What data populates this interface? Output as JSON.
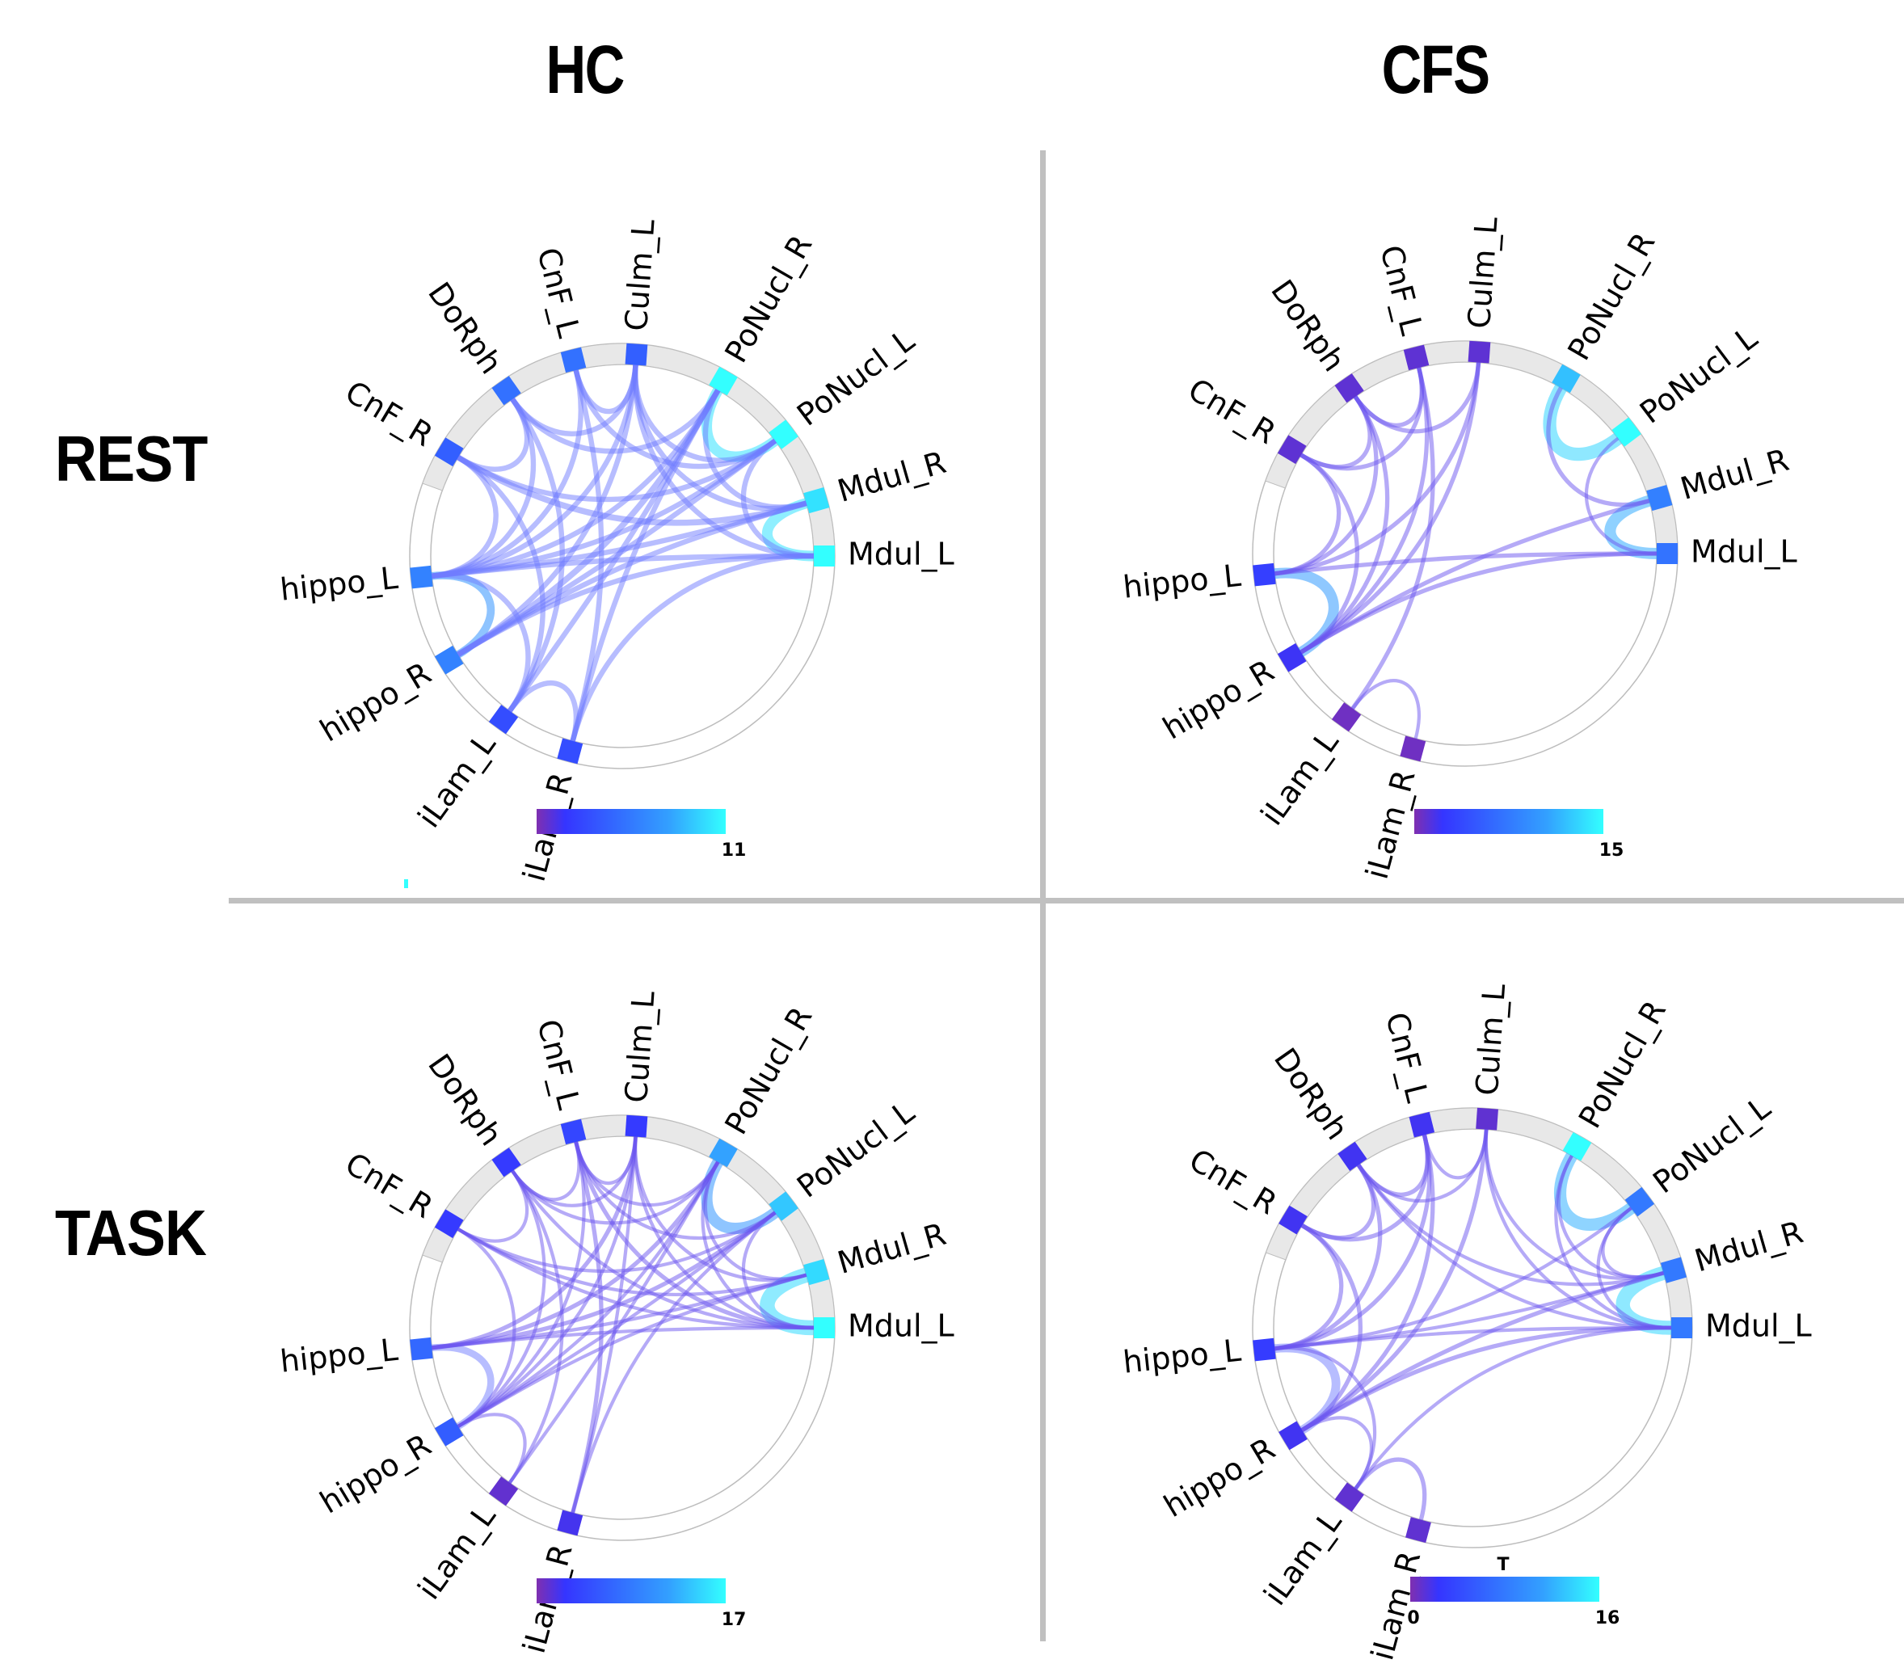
{
  "figure": {
    "column_titles": [
      "HC",
      "CFS"
    ],
    "row_titles": [
      "REST",
      "TASK"
    ]
  },
  "colormap": {
    "stops": [
      "#7f2fb0",
      "#3535ff",
      "#3366ff",
      "#33a0ff",
      "#33ffff"
    ],
    "ring_color": "#e8e8e8",
    "divider_color": "#c0c0c0"
  },
  "chart_data": [
    {
      "type": "chord",
      "title": "HC / REST",
      "group": "HC",
      "condition": "REST",
      "nodes": [
        "Mdul_L",
        "Mdul_R",
        "PoNucl_L",
        "PoNucl_R",
        "Culm_L",
        "CnF_L",
        "DoRph",
        "CnF_R",
        "hippo_L",
        "hippo_R",
        "iLam_L",
        "iLam_R"
      ],
      "node_values": [
        11,
        10,
        11,
        11,
        4,
        5,
        5,
        4,
        6,
        6,
        3,
        3
      ],
      "colorbar": {
        "min": 0,
        "max": 11,
        "max_label": "11",
        "min_label": "",
        "title": ""
      },
      "edges": [
        [
          "Mdul_L",
          "Mdul_R",
          10
        ],
        [
          "PoNucl_L",
          "PoNucl_R",
          10
        ],
        [
          "hippo_L",
          "hippo_R",
          7
        ],
        [
          "Culm_L",
          "CnF_L",
          4
        ],
        [
          "Culm_L",
          "DoRph",
          4
        ],
        [
          "Culm_L",
          "hippo_L",
          4
        ],
        [
          "Culm_L",
          "hippo_R",
          4
        ],
        [
          "Culm_L",
          "Mdul_L",
          4
        ],
        [
          "Culm_L",
          "Mdul_R",
          4
        ],
        [
          "Culm_L",
          "PoNucl_L",
          4
        ],
        [
          "CnF_L",
          "iLam_R",
          4
        ],
        [
          "CnF_L",
          "PoNucl_L",
          4
        ],
        [
          "CnF_L",
          "hippo_L",
          4
        ],
        [
          "DoRph",
          "CnF_R",
          4
        ],
        [
          "DoRph",
          "hippo_L",
          4
        ],
        [
          "DoRph",
          "iLam_L",
          4
        ],
        [
          "DoRph",
          "PoNucl_R",
          4
        ],
        [
          "CnF_R",
          "Mdul_R",
          5
        ],
        [
          "CnF_R",
          "hippo_L",
          4
        ],
        [
          "CnF_R",
          "iLam_L",
          4
        ],
        [
          "CnF_R",
          "PoNucl_L",
          4
        ],
        [
          "hippo_L",
          "Mdul_L",
          4
        ],
        [
          "hippo_L",
          "Mdul_R",
          4
        ],
        [
          "hippo_L",
          "PoNucl_R",
          4
        ],
        [
          "hippo_L",
          "PoNucl_L",
          4
        ],
        [
          "hippo_L",
          "iLam_L",
          4
        ],
        [
          "hippo_R",
          "PoNucl_R",
          5
        ],
        [
          "hippo_R",
          "PoNucl_L",
          4
        ],
        [
          "hippo_R",
          "Mdul_L",
          4
        ],
        [
          "hippo_R",
          "Mdul_R",
          4
        ],
        [
          "iLam_L",
          "iLam_R",
          4
        ],
        [
          "iLam_L",
          "PoNucl_R",
          4
        ],
        [
          "iLam_R",
          "Mdul_L",
          4
        ],
        [
          "iLam_R",
          "PoNucl_R",
          4
        ],
        [
          "PoNucl_R",
          "Mdul_R",
          4
        ],
        [
          "PoNucl_L",
          "Mdul_L",
          4
        ]
      ]
    },
    {
      "type": "chord",
      "title": "CFS / REST",
      "group": "CFS",
      "condition": "REST",
      "nodes": [
        "Mdul_L",
        "Mdul_R",
        "PoNucl_L",
        "PoNucl_R",
        "Culm_L",
        "CnF_L",
        "DoRph",
        "CnF_R",
        "hippo_L",
        "hippo_R",
        "iLam_L",
        "iLam_R"
      ],
      "node_values": [
        7,
        8,
        15,
        12,
        1,
        1,
        1,
        1,
        3,
        2,
        0.5,
        0.5
      ],
      "colorbar": {
        "min": 0,
        "max": 15,
        "max_label": "15",
        "min_label": "",
        "title": ""
      },
      "edges": [
        [
          "PoNucl_L",
          "PoNucl_R",
          13
        ],
        [
          "Mdul_L",
          "Mdul_R",
          11
        ],
        [
          "hippo_L",
          "hippo_R",
          10
        ],
        [
          "PoNucl_R",
          "Mdul_R",
          3
        ],
        [
          "PoNucl_L",
          "Mdul_L",
          2
        ],
        [
          "CnF_L",
          "DoRph",
          3
        ],
        [
          "CnF_L",
          "CnF_R",
          3
        ],
        [
          "CnF_L",
          "hippo_R",
          3
        ],
        [
          "CnF_L",
          "iLam_L",
          3
        ],
        [
          "DoRph",
          "CnF_R",
          3
        ],
        [
          "DoRph",
          "hippo_L",
          3
        ],
        [
          "DoRph",
          "hippo_R",
          3
        ],
        [
          "DoRph",
          "Culm_L",
          3
        ],
        [
          "Culm_L",
          "hippo_L",
          3
        ],
        [
          "Culm_L",
          "hippo_R",
          3
        ],
        [
          "CnF_R",
          "hippo_L",
          3
        ],
        [
          "CnF_R",
          "hippo_R",
          3
        ],
        [
          "hippo_L",
          "Mdul_L",
          3
        ],
        [
          "hippo_R",
          "Mdul_L",
          3
        ],
        [
          "hippo_R",
          "Mdul_R",
          3
        ],
        [
          "iLam_L",
          "iLam_R",
          2
        ]
      ]
    },
    {
      "type": "chord",
      "title": "HC / TASK",
      "group": "HC",
      "condition": "TASK",
      "nodes": [
        "Mdul_L",
        "Mdul_R",
        "PoNucl_L",
        "PoNucl_R",
        "Culm_L",
        "CnF_L",
        "DoRph",
        "CnF_R",
        "hippo_L",
        "hippo_R",
        "iLam_L",
        "iLam_R"
      ],
      "node_values": [
        17,
        15,
        14,
        12,
        3,
        4,
        3,
        3,
        7,
        6,
        1,
        2
      ],
      "colorbar": {
        "min": 0,
        "max": 17,
        "max_label": "17",
        "min_label": "",
        "title": ""
      },
      "edges": [
        [
          "Mdul_L",
          "Mdul_R",
          15
        ],
        [
          "PoNucl_L",
          "PoNucl_R",
          11
        ],
        [
          "hippo_L",
          "hippo_R",
          6
        ],
        [
          "Culm_L",
          "CnF_L",
          2
        ],
        [
          "Culm_L",
          "DoRph",
          2
        ],
        [
          "Culm_L",
          "Mdul_L",
          2
        ],
        [
          "Culm_L",
          "Mdul_R",
          2
        ],
        [
          "Culm_L",
          "hippo_L",
          3
        ],
        [
          "Culm_L",
          "hippo_R",
          2
        ],
        [
          "Culm_L",
          "iLam_R",
          2
        ],
        [
          "CnF_L",
          "DoRph",
          2
        ],
        [
          "CnF_L",
          "PoNucl_R",
          2
        ],
        [
          "CnF_L",
          "PoNucl_L",
          2
        ],
        [
          "CnF_L",
          "Mdul_L",
          3
        ],
        [
          "CnF_L",
          "iLam_R",
          3
        ],
        [
          "CnF_L",
          "hippo_R",
          2
        ],
        [
          "DoRph",
          "CnF_R",
          2
        ],
        [
          "DoRph",
          "PoNucl_R",
          2
        ],
        [
          "DoRph",
          "Mdul_L",
          2
        ],
        [
          "DoRph",
          "iLam_L",
          2
        ],
        [
          "DoRph",
          "hippo_R",
          2
        ],
        [
          "CnF_R",
          "Mdul_R",
          2
        ],
        [
          "CnF_R",
          "PoNucl_L",
          2
        ],
        [
          "CnF_R",
          "hippo_R",
          2
        ],
        [
          "CnF_R",
          "Mdul_L",
          2
        ],
        [
          "hippo_L",
          "PoNucl_R",
          3
        ],
        [
          "hippo_L",
          "PoNucl_L",
          3
        ],
        [
          "hippo_L",
          "Mdul_L",
          2
        ],
        [
          "hippo_L",
          "Mdul_R",
          2
        ],
        [
          "hippo_R",
          "iLam_L",
          2
        ],
        [
          "hippo_R",
          "PoNucl_R",
          2
        ],
        [
          "hippo_R",
          "PoNucl_L",
          2
        ],
        [
          "hippo_R",
          "Mdul_R",
          2
        ],
        [
          "iLam_L",
          "PoNucl_R",
          2
        ],
        [
          "iLam_R",
          "PoNucl_L",
          2
        ],
        [
          "PoNucl_R",
          "Mdul_R",
          2
        ],
        [
          "PoNucl_L",
          "Mdul_L",
          2
        ],
        [
          "PoNucl_R",
          "Mdul_L",
          2
        ]
      ]
    },
    {
      "type": "chord",
      "title": "CFS / TASK",
      "group": "CFS",
      "condition": "TASK",
      "nodes": [
        "Mdul_L",
        "Mdul_R",
        "PoNucl_L",
        "PoNucl_R",
        "Culm_L",
        "CnF_L",
        "DoRph",
        "CnF_R",
        "hippo_L",
        "hippo_R",
        "iLam_L",
        "iLam_R"
      ],
      "node_values": [
        8,
        8,
        8,
        16,
        1,
        2,
        2,
        2,
        3,
        2,
        1,
        1
      ],
      "colorbar": {
        "min": 0,
        "max": 16,
        "max_label": "16",
        "min_label": "0",
        "title": "T"
      },
      "edges": [
        [
          "Mdul_L",
          "Mdul_R",
          14
        ],
        [
          "PoNucl_L",
          "PoNucl_R",
          12
        ],
        [
          "hippo_L",
          "hippo_R",
          8
        ],
        [
          "Culm_L",
          "CnF_L",
          2
        ],
        [
          "Culm_L",
          "DoRph",
          2
        ],
        [
          "Culm_L",
          "hippo_R",
          3
        ],
        [
          "Culm_L",
          "Mdul_L",
          2
        ],
        [
          "Culm_L",
          "Mdul_R",
          2
        ],
        [
          "CnF_L",
          "DoRph",
          3
        ],
        [
          "CnF_L",
          "CnF_R",
          3
        ],
        [
          "CnF_L",
          "hippo_L",
          3
        ],
        [
          "CnF_L",
          "hippo_R",
          3
        ],
        [
          "DoRph",
          "CnF_R",
          3
        ],
        [
          "DoRph",
          "hippo_L",
          3
        ],
        [
          "DoRph",
          "Mdul_L",
          2
        ],
        [
          "DoRph",
          "Mdul_R",
          2
        ],
        [
          "CnF_R",
          "hippo_L",
          3
        ],
        [
          "CnF_R",
          "hippo_R",
          3
        ],
        [
          "hippo_L",
          "Mdul_L",
          2
        ],
        [
          "hippo_L",
          "Mdul_R",
          2
        ],
        [
          "hippo_L",
          "PoNucl_L",
          2
        ],
        [
          "hippo_L",
          "iLam_L",
          2
        ],
        [
          "hippo_R",
          "Mdul_L",
          3
        ],
        [
          "hippo_R",
          "Mdul_R",
          3
        ],
        [
          "hippo_R",
          "iLam_L",
          2
        ],
        [
          "iLam_L",
          "iLam_R",
          3
        ],
        [
          "iLam_L",
          "Mdul_L",
          2
        ],
        [
          "PoNucl_R",
          "Mdul_L",
          2
        ],
        [
          "PoNucl_R",
          "Mdul_R",
          2
        ],
        [
          "PoNucl_L",
          "Mdul_L",
          2
        ],
        [
          "PoNucl_L",
          "Mdul_R",
          2
        ]
      ]
    }
  ]
}
